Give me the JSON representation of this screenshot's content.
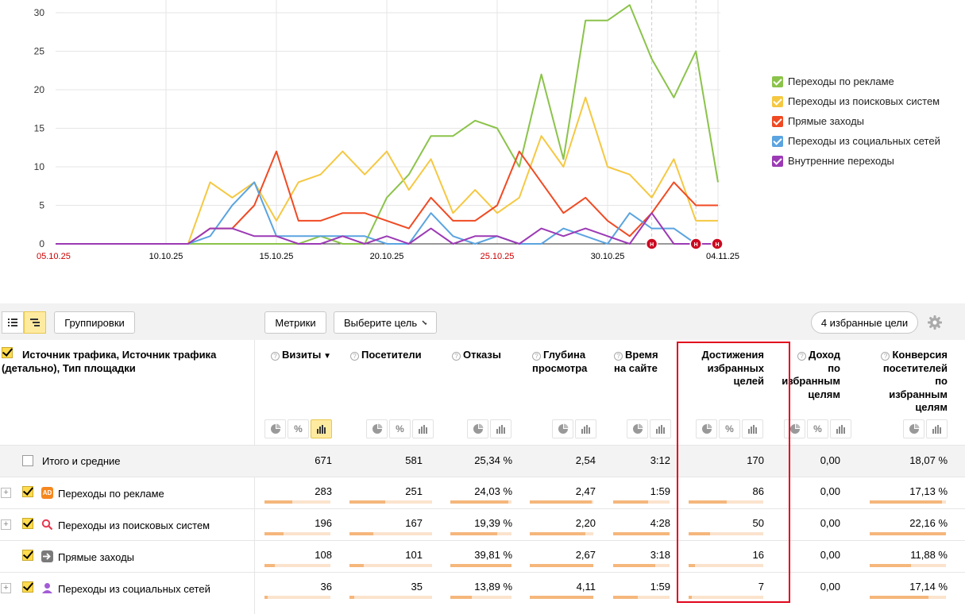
{
  "chart_data": {
    "type": "line",
    "x": [
      "05.10.25",
      "06.10.25",
      "07.10.25",
      "08.10.25",
      "09.10.25",
      "10.10.25",
      "11.10.25",
      "12.10.25",
      "13.10.25",
      "14.10.25",
      "15.10.25",
      "16.10.25",
      "17.10.25",
      "18.10.25",
      "19.10.25",
      "20.10.25",
      "21.10.25",
      "22.10.25",
      "23.10.25",
      "24.10.25",
      "25.10.25",
      "26.10.25",
      "27.10.25",
      "28.10.25",
      "29.10.25",
      "30.10.25",
      "31.10.25",
      "01.11.25",
      "02.11.25",
      "03.11.25",
      "04.11.25"
    ],
    "x_tick_labels": [
      {
        "label": "05.10.25",
        "index": 0,
        "color": "#cc0000"
      },
      {
        "label": "10.10.25",
        "index": 5,
        "color": "#000000"
      },
      {
        "label": "15.10.25",
        "index": 10,
        "color": "#000000"
      },
      {
        "label": "20.10.25",
        "index": 15,
        "color": "#000000"
      },
      {
        "label": "25.10.25",
        "index": 20,
        "color": "#cc0000"
      },
      {
        "label": "30.10.25",
        "index": 25,
        "color": "#000000"
      },
      {
        "label": "04.11.25",
        "index": 30,
        "color": "#000000"
      }
    ],
    "y_ticks": [
      0,
      5,
      10,
      15,
      20,
      25,
      30
    ],
    "ylim": [
      0,
      31
    ],
    "grid": true,
    "legend_position": "right",
    "series": [
      {
        "name": "Переходы по рекламе",
        "color": "#8bc34a",
        "values": [
          0,
          0,
          0,
          0,
          0,
          0,
          0,
          0,
          0,
          0,
          0,
          0,
          1,
          0,
          0,
          6,
          9,
          14,
          14,
          16,
          15,
          10,
          22,
          11,
          29,
          29,
          31,
          24,
          19,
          25,
          8
        ]
      },
      {
        "name": "Переходы из поисковых систем",
        "color": "#f5c842",
        "values": [
          0,
          0,
          0,
          0,
          0,
          0,
          0,
          8,
          6,
          8,
          3,
          8,
          9,
          12,
          9,
          12,
          7,
          11,
          4,
          7,
          4,
          6,
          14,
          10,
          19,
          10,
          9,
          6,
          11,
          3,
          3
        ]
      },
      {
        "name": "Прямые заходы",
        "color": "#f04a23",
        "values": [
          0,
          0,
          0,
          0,
          0,
          0,
          0,
          2,
          2,
          5,
          12,
          3,
          3,
          4,
          4,
          3,
          2,
          6,
          3,
          3,
          5,
          12,
          8,
          4,
          6,
          3,
          1,
          4,
          8,
          5,
          5
        ]
      },
      {
        "name": "Переходы из социальных сетей",
        "color": "#5ba4e0",
        "values": [
          0,
          0,
          0,
          0,
          0,
          0,
          0,
          1,
          5,
          8,
          1,
          1,
          1,
          1,
          1,
          0,
          0,
          4,
          1,
          0,
          1,
          0,
          0,
          2,
          1,
          0,
          4,
          2,
          2,
          0,
          0
        ]
      },
      {
        "name": "Внутренние переходы",
        "color": "#9c3ab5",
        "values": [
          0,
          0,
          0,
          0,
          0,
          0,
          0,
          2,
          2,
          1,
          1,
          0,
          0,
          1,
          0,
          1,
          0,
          2,
          0,
          1,
          1,
          0,
          2,
          1,
          2,
          1,
          0,
          4,
          0,
          0,
          0
        ]
      }
    ],
    "annotations": [
      {
        "label": "Н",
        "x": "01.11.25"
      },
      {
        "label": "Н",
        "x": "03.11.25"
      },
      {
        "label": "Н",
        "x": "04.11.25"
      }
    ]
  },
  "toolbar": {
    "groupings_label": "Группировки",
    "metrics_label": "Метрики",
    "goal_select_label": "Выберите цель",
    "favorites_label": "4 избранные цели"
  },
  "table": {
    "dimension_header": "Источник трафика, Источник трафика (детально), Тип площадки",
    "columns": [
      {
        "lines": [
          "Визиты"
        ],
        "sort": "▼"
      },
      {
        "lines": [
          "Посетители"
        ]
      },
      {
        "lines": [
          "Отказы"
        ]
      },
      {
        "lines": [
          "Глубина",
          "просмотра"
        ]
      },
      {
        "lines": [
          "Время",
          "на сайте"
        ]
      },
      {
        "lines": [
          "Достижения",
          "избранных",
          "целей"
        ]
      },
      {
        "lines": [
          "Доход",
          "по",
          "избранным",
          "целям"
        ]
      },
      {
        "lines": [
          "Конверсия",
          "посетителей",
          "по",
          "избранным",
          "целям"
        ]
      }
    ],
    "total": {
      "label": "Итого и средние",
      "values": [
        "671",
        "581",
        "25,34 %",
        "2,54",
        "3:12",
        "170",
        "0,00",
        "18,07 %"
      ]
    },
    "rows": [
      {
        "label": "Переходы по рекламе",
        "icon": "ad-icon",
        "values": [
          "283",
          "251",
          "24,03 %",
          "2,47",
          "1:59",
          "86",
          "0,00",
          "17,13 %"
        ],
        "fill": [
          0.42,
          0.43,
          0.95,
          0.97,
          0.62,
          0.51,
          0,
          0.95
        ]
      },
      {
        "label": "Переходы из поисковых систем",
        "icon": "search-icon",
        "values": [
          "196",
          "167",
          "19,39 %",
          "2,20",
          "4:28",
          "50",
          "0,00",
          "22,16 %"
        ],
        "fill": [
          0.29,
          0.29,
          0.77,
          0.87,
          1.0,
          0.29,
          0,
          1.0
        ]
      },
      {
        "label": "Прямые заходы",
        "icon": "arrow-right-icon",
        "values": [
          "108",
          "101",
          "39,81 %",
          "2,67",
          "3:18",
          "16",
          "0,00",
          "11,88 %"
        ],
        "fill": [
          0.16,
          0.17,
          1.0,
          1.0,
          0.74,
          0.09,
          0,
          0.54
        ]
      },
      {
        "label": "Переходы из социальных сетей",
        "icon": "social-icon",
        "values": [
          "36",
          "35",
          "13,89 %",
          "4,11",
          "1:59",
          "7",
          "0,00",
          "17,14 %"
        ],
        "fill": [
          0.05,
          0.06,
          0.35,
          1.0,
          0.44,
          0.04,
          0,
          0.77
        ]
      }
    ]
  }
}
